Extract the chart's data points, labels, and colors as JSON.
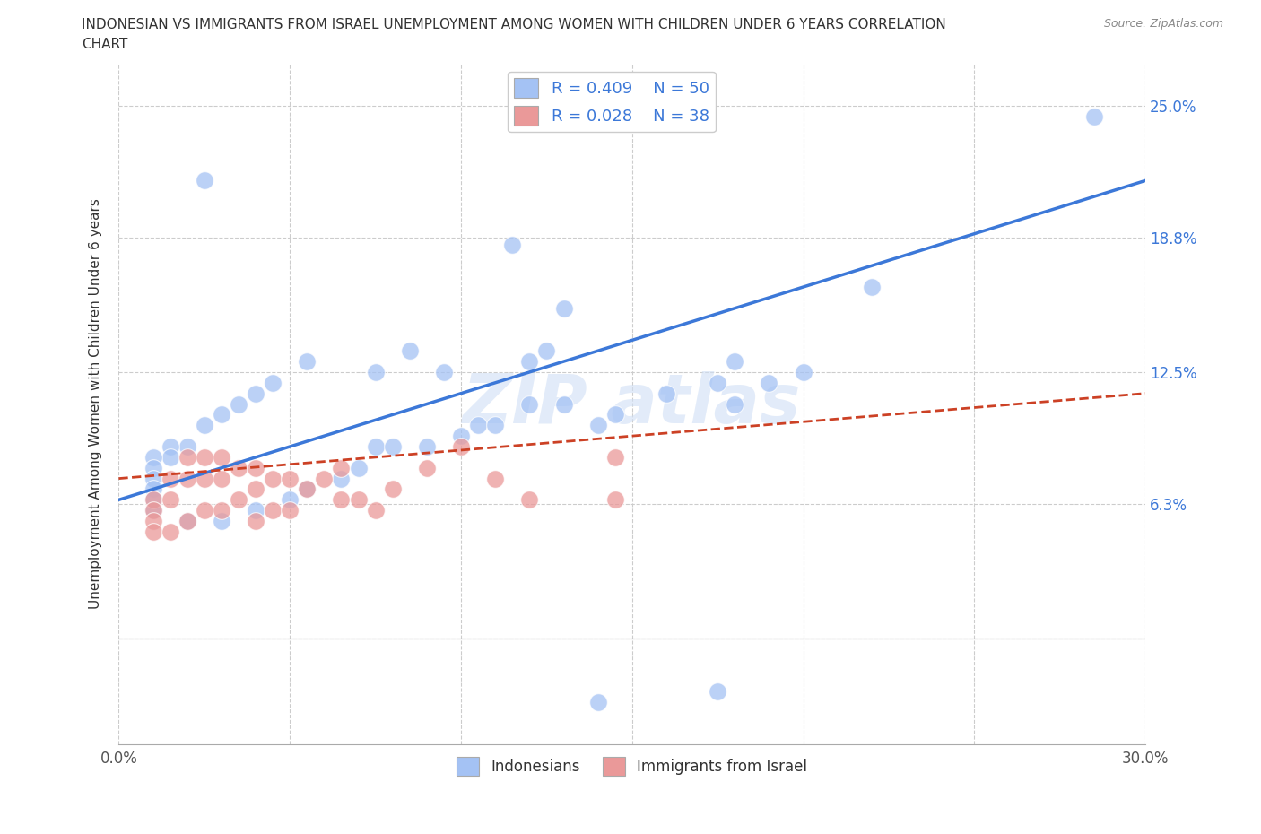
{
  "title_line1": "INDONESIAN VS IMMIGRANTS FROM ISRAEL UNEMPLOYMENT AMONG WOMEN WITH CHILDREN UNDER 6 YEARS CORRELATION",
  "title_line2": "CHART",
  "source": "Source: ZipAtlas.com",
  "ylabel": "Unemployment Among Women with Children Under 6 years",
  "xlim": [
    0.0,
    0.3
  ],
  "ylim": [
    -0.05,
    0.27
  ],
  "xticks": [
    0.0,
    0.05,
    0.1,
    0.15,
    0.2,
    0.25,
    0.3
  ],
  "ytick_positions": [
    0.0,
    0.063,
    0.125,
    0.188,
    0.25
  ],
  "yticklabels_right": [
    "",
    "6.3%",
    "12.5%",
    "18.8%",
    "25.0%"
  ],
  "color_blue": "#a4c2f4",
  "color_pink": "#ea9999",
  "color_blue_line": "#3c78d8",
  "color_pink_line": "#cc4125",
  "background_color": "#ffffff",
  "grid_color": "#cccccc",
  "indonesian_x": [
    0.285,
    0.025,
    0.115,
    0.22,
    0.13,
    0.125,
    0.12,
    0.095,
    0.085,
    0.075,
    0.055,
    0.045,
    0.04,
    0.035,
    0.03,
    0.025,
    0.02,
    0.015,
    0.015,
    0.01,
    0.01,
    0.01,
    0.01,
    0.01,
    0.01,
    0.02,
    0.03,
    0.04,
    0.05,
    0.055,
    0.065,
    0.07,
    0.075,
    0.08,
    0.09,
    0.1,
    0.105,
    0.11,
    0.12,
    0.13,
    0.14,
    0.145,
    0.16,
    0.175,
    0.18,
    0.18,
    0.19,
    0.2,
    0.14,
    0.175
  ],
  "indonesian_y": [
    0.245,
    0.215,
    0.185,
    0.165,
    0.155,
    0.135,
    0.13,
    0.125,
    0.135,
    0.125,
    0.13,
    0.12,
    0.115,
    0.11,
    0.105,
    0.1,
    0.09,
    0.09,
    0.085,
    0.085,
    0.08,
    0.075,
    0.07,
    0.065,
    0.06,
    0.055,
    0.055,
    0.06,
    0.065,
    0.07,
    0.075,
    0.08,
    0.09,
    0.09,
    0.09,
    0.095,
    0.1,
    0.1,
    0.11,
    0.11,
    0.1,
    0.105,
    0.115,
    0.12,
    0.13,
    0.11,
    0.12,
    0.125,
    -0.03,
    -0.025
  ],
  "israel_x": [
    0.01,
    0.01,
    0.01,
    0.01,
    0.015,
    0.015,
    0.015,
    0.02,
    0.02,
    0.02,
    0.025,
    0.025,
    0.025,
    0.03,
    0.03,
    0.03,
    0.035,
    0.035,
    0.04,
    0.04,
    0.04,
    0.045,
    0.045,
    0.05,
    0.05,
    0.055,
    0.06,
    0.065,
    0.065,
    0.07,
    0.075,
    0.08,
    0.09,
    0.1,
    0.11,
    0.12,
    0.145,
    0.145
  ],
  "israel_y": [
    0.065,
    0.06,
    0.055,
    0.05,
    0.075,
    0.065,
    0.05,
    0.085,
    0.075,
    0.055,
    0.085,
    0.075,
    0.06,
    0.085,
    0.075,
    0.06,
    0.08,
    0.065,
    0.08,
    0.07,
    0.055,
    0.075,
    0.06,
    0.075,
    0.06,
    0.07,
    0.075,
    0.08,
    0.065,
    0.065,
    0.06,
    0.07,
    0.08,
    0.09,
    0.075,
    0.065,
    0.085,
    0.065
  ]
}
